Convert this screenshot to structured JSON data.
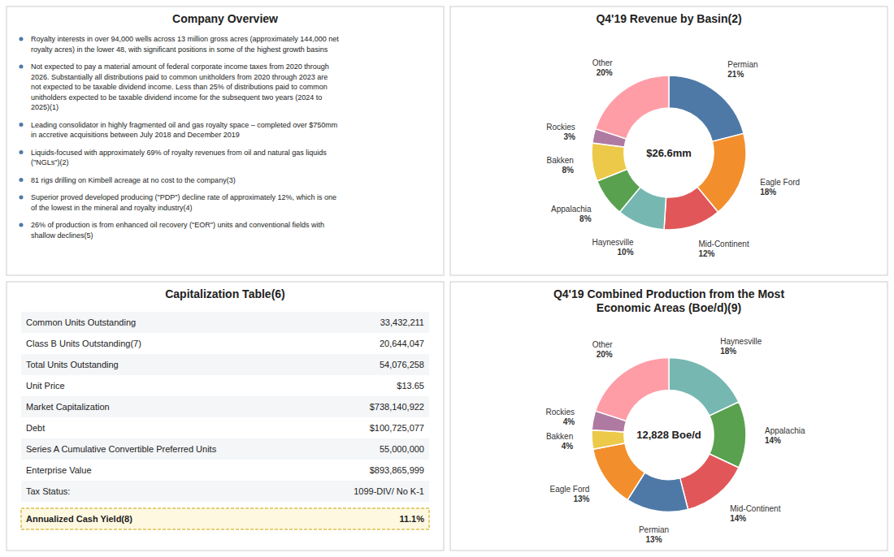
{
  "chart_data": [
    {
      "type": "text",
      "title": "Company Overview",
      "annotations": [
        "Royalty interests in over 94,000 wells across 13 million gross acres (approximately 144,000 net\nroyalty acres) in the lower 48, with significant positions in some of the highest growth basins",
        "Not expected to pay a material amount of federal corporate income taxes from 2020 through\n2026.  Substantially all distributions paid to common unitholders from 2020 through 2023 are\nnot expected to be taxable dividend income.  Less than 25% of distributions paid to common\nunitholders expected to be taxable dividend income for the subsequent two years (2024 to\n2025)(1)",
        "Leading consolidator in highly fragmented oil and gas royalty space – completed over $750mm\nin accretive acquisitions between July 2018 and December 2019",
        "Liquids-focused with approximately 69% of royalty revenues from oil and natural gas liquids\n(\"NGLs\")(2)",
        "81 rigs drilling on Kimbell acreage at no cost to the company(3)",
        "Superior proved developed producing (\"PDP\") decline rate of approximately 12%, which is one\nof the lowest in the mineral and royalty industry(4)",
        "26% of production is from enhanced oil recovery (\"EOR\") units and conventional fields with\nshallow declines(5)"
      ]
    },
    {
      "type": "pie",
      "title": "Q4'19 Revenue by Basin(2)",
      "categories": [
        "Permian",
        "Eagle Ford",
        "Mid-Continent",
        "Haynesville",
        "Appalachia",
        "Bakken",
        "Rockies",
        "Other"
      ],
      "values": [
        21,
        18,
        12,
        10,
        8,
        8,
        3,
        20
      ],
      "value_labels": [
        "21%",
        "18%",
        "12%",
        "10%",
        "8%",
        "8%",
        "3%",
        "20%"
      ],
      "data_labels": true,
      "annotations": [
        "$26.6mm"
      ]
    },
    {
      "type": "table",
      "title": "Capitalization Table(6)",
      "categories": [
        "Common Units Outstanding",
        "Class B Units Outstanding(7)",
        "Total Units Outstanding",
        "Unit Price",
        "Market Capitalization",
        "Debt",
        "Series A Cumulative Convertible Preferred Units",
        "Enterprise Value",
        "Tax Status:"
      ],
      "values": [
        33432211,
        20644047,
        54076258,
        13.65,
        738140922,
        100725077,
        55000000,
        893865999,
        null
      ],
      "value_labels": [
        "33,432,211",
        "20,644,047",
        "54,076,258",
        "$13.65",
        "$738,140,922",
        "$100,725,077",
        "55,000,000",
        "$893,865,999",
        "1099-DIV/ No K-1"
      ],
      "summary": {
        "label": "Annualized Cash Yield(8)",
        "value": 11.1,
        "value_label": "11.1%"
      }
    },
    {
      "type": "pie",
      "title": "Q4'19 Combined Production from the Most\nEconomic Areas (Boe/d)(9)",
      "categories": [
        "Haynesville",
        "Appalachia",
        "Mid-Continent",
        "Permian",
        "Eagle Ford",
        "Bakken",
        "Rockies",
        "Other"
      ],
      "values": [
        18,
        14,
        14,
        13,
        13,
        4,
        4,
        20
      ],
      "value_labels": [
        "18%",
        "14%",
        "14%",
        "13%",
        "13%",
        "4%",
        "4%",
        "20%"
      ],
      "data_labels": true,
      "annotations": [
        "12,828 Boe/d"
      ]
    }
  ]
}
